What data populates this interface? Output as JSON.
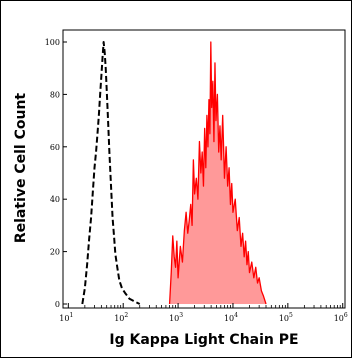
{
  "chart_data": {
    "type": "area",
    "title": "",
    "xlabel": "Ig Kappa Light Chain PE",
    "ylabel": "Relative Cell Count",
    "x_scale": "log",
    "xlim": [
      8,
      1100000
    ],
    "ylim": [
      0,
      100
    ],
    "x_ticks": [
      {
        "value": 10,
        "base": "10",
        "exp": "1"
      },
      {
        "value": 100,
        "base": "10",
        "exp": "2"
      },
      {
        "value": 1000,
        "base": "10",
        "exp": "3"
      },
      {
        "value": 10000,
        "base": "10",
        "exp": "4"
      },
      {
        "value": 100000,
        "base": "10",
        "exp": "5"
      },
      {
        "value": 1000000,
        "base": "10",
        "exp": "6"
      }
    ],
    "y_ticks": [
      0,
      20,
      40,
      60,
      80,
      100
    ],
    "grid": false,
    "legend": "none",
    "series": [
      {
        "style": "dashed-outline",
        "color": "#000000",
        "x": [
          18,
          20,
          22,
          24,
          26,
          28,
          30,
          32,
          34,
          36,
          38,
          40,
          42,
          44,
          46,
          48,
          50,
          53,
          56,
          60,
          64,
          68,
          72,
          78,
          85,
          95,
          110,
          130,
          160,
          200
        ],
        "y": [
          0,
          6,
          15,
          25,
          33,
          43,
          52,
          58,
          65,
          72,
          80,
          87,
          94,
          100,
          96,
          90,
          82,
          70,
          58,
          45,
          33,
          26,
          19,
          14,
          9,
          6,
          4,
          2,
          1,
          0
        ]
      },
      {
        "style": "filled",
        "color": "#ff0000",
        "fill": "#ff9999",
        "x": [
          700,
          750,
          800,
          850,
          900,
          950,
          1000,
          1100,
          1200,
          1300,
          1400,
          1500,
          1600,
          1700,
          1800,
          1900,
          2000,
          2150,
          2300,
          2450,
          2600,
          2750,
          2900,
          3050,
          3200,
          3350,
          3500,
          3650,
          3800,
          3950,
          4100,
          4300,
          4500,
          4700,
          4900,
          5200,
          5500,
          5800,
          6100,
          6500,
          7000,
          7500,
          8000,
          8500,
          9000,
          9500,
          10000,
          11000,
          12000,
          13000,
          14000,
          15000,
          16000,
          17000,
          18000,
          19000,
          20000,
          22000,
          24000,
          26000,
          28000,
          30000,
          33000,
          36000,
          40000
        ],
        "y": [
          0,
          12,
          26,
          18,
          14,
          24,
          10,
          22,
          16,
          28,
          35,
          27,
          32,
          38,
          30,
          55,
          42,
          48,
          40,
          62,
          50,
          58,
          45,
          67,
          52,
          72,
          60,
          78,
          65,
          100,
          75,
          85,
          62,
          92,
          70,
          80,
          58,
          68,
          55,
          72,
          48,
          60,
          45,
          52,
          38,
          46,
          35,
          40,
          28,
          33,
          22,
          27,
          18,
          24,
          15,
          20,
          12,
          16,
          10,
          14,
          8,
          10,
          5,
          3,
          0
        ]
      }
    ]
  }
}
